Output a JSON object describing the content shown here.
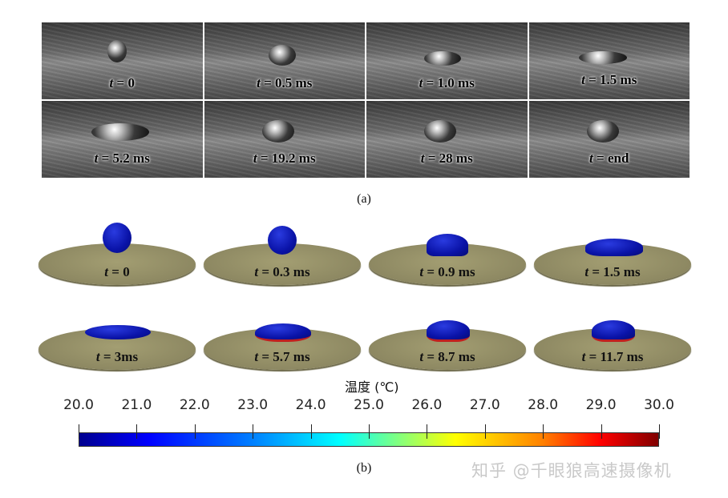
{
  "panel_a": {
    "frames": [
      "= 0",
      "= 0.5 ms",
      "= 1.0 ms",
      "= 1.5 ms",
      "= 5.2 ms",
      "= 19.2 ms",
      "= 28 ms",
      "=  end"
    ],
    "caption": "(a)"
  },
  "panel_b": {
    "frames": [
      "= 0",
      "= 0.3 ms",
      "= 0.9 ms",
      "= 1.5 ms",
      "= 3ms",
      "= 5.7 ms",
      "= 8.7 ms",
      "= 11.7 ms"
    ],
    "caption": "(b)"
  },
  "time_symbol": "t",
  "colorbar": {
    "title": "温度 (℃)",
    "ticks": [
      "20.0",
      "21.0",
      "22.0",
      "23.0",
      "24.0",
      "25.0",
      "26.0",
      "27.0",
      "28.0",
      "29.0",
      "30.0"
    ],
    "min": 20.0,
    "max": 30.0,
    "colors": [
      "#00008f",
      "#0000ff",
      "#00ffff",
      "#ffff00",
      "#ff0000",
      "#800000"
    ]
  },
  "watermark": "知乎 @千眼狼高速摄像机"
}
